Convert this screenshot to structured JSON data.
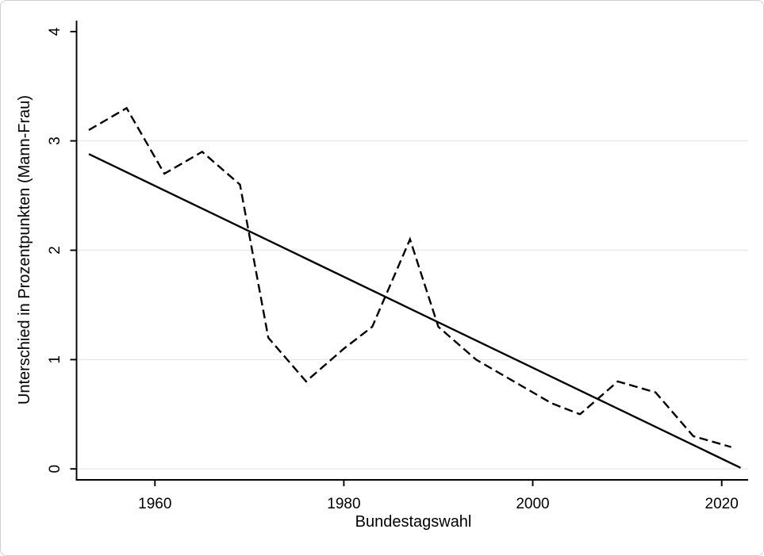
{
  "chart_data": {
    "type": "line",
    "title": "",
    "xlabel": "Bundestagswahl",
    "ylabel": "Unterschied in Prozentpunkten (Mann-Frau)",
    "x_ticks": [
      1960,
      1980,
      2000,
      2020
    ],
    "y_ticks": [
      0,
      1,
      2,
      3,
      4
    ],
    "y_gridlines": [
      0,
      1,
      2,
      3
    ],
    "xlim": [
      1951.7,
      2022.8
    ],
    "ylim": [
      -0.1,
      4.1
    ],
    "legend": "none",
    "grid": "horizontal-light",
    "series": [
      {
        "name": "observed-gap",
        "style": "dashed",
        "color": "#000000",
        "x": [
          1953,
          1957,
          1961,
          1965,
          1969,
          1972,
          1976,
          1980,
          1983,
          1987,
          1990,
          1994,
          1998,
          2002,
          2005,
          2009,
          2013,
          2017,
          2021
        ],
        "y": [
          3.1,
          3.3,
          2.7,
          2.9,
          2.6,
          1.2,
          0.8,
          1.1,
          1.3,
          2.1,
          1.3,
          1.0,
          0.8,
          0.6,
          0.5,
          0.8,
          0.7,
          0.3,
          0.2
        ]
      },
      {
        "name": "linear-trend",
        "style": "solid",
        "color": "#000000",
        "x": [
          1953,
          2022
        ],
        "y": [
          2.88,
          0.01
        ]
      }
    ]
  },
  "colors": {
    "line": "#000000",
    "axis": "#000000",
    "grid": "#e9e9e9",
    "text": "#000000",
    "background": "#ffffff",
    "frame_border": "#cfcfcf"
  }
}
